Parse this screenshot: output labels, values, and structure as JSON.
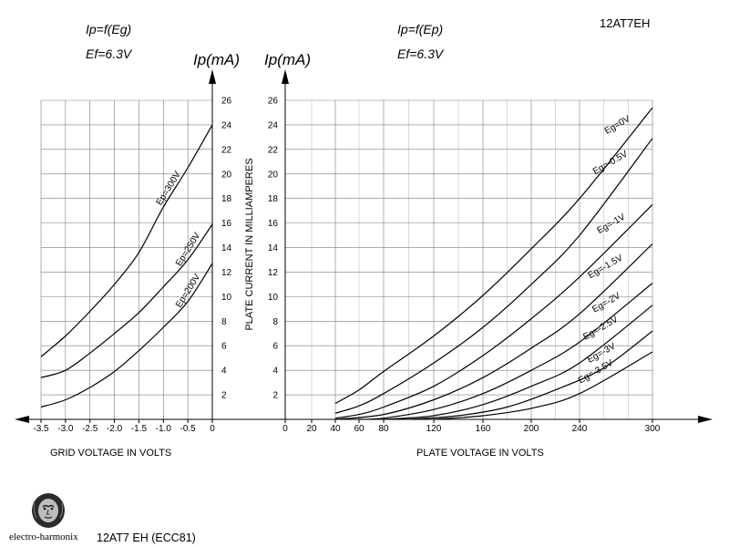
{
  "header": {
    "left_title": "Ip=f(Eg)",
    "left_sub": "Ef=6.3V",
    "right_title": "Ip=f(Ep)",
    "right_sub": "Ef=6.3V",
    "model": "12AT7EH",
    "unit_left": "Ip(mA)",
    "unit_right": "Ip(mA)"
  },
  "footer": {
    "brand": "electro-harmonix",
    "model_label": "12AT7 EH (ECC81)"
  },
  "chart_data": [
    {
      "type": "line",
      "xlabel": "GRID VOLTAGE IN VOLTS",
      "ylabel": "Ip(mA)",
      "xlim": [
        -3.5,
        0
      ],
      "ylim": [
        0,
        26
      ],
      "grid": true,
      "x_ticks": [
        -3.5,
        -3.0,
        -2.5,
        -2.0,
        -1.5,
        -1.0,
        -0.5,
        0
      ],
      "x_tick_labels": [
        "-3.5",
        "-3.0",
        "-2.5",
        "-2.0",
        "-1.5",
        "-1.0",
        "-0.5",
        "0"
      ],
      "y_ticks": [
        2,
        4,
        6,
        8,
        10,
        12,
        14,
        16,
        18,
        20,
        22,
        24,
        26
      ],
      "series": [
        {
          "name": "Ep=300V",
          "points": [
            [
              -3.5,
              5.1
            ],
            [
              -3.0,
              6.8
            ],
            [
              -2.5,
              8.8
            ],
            [
              -2.0,
              11.0
            ],
            [
              -1.5,
              13.6
            ],
            [
              -1.0,
              17.3
            ],
            [
              -0.5,
              20.5
            ],
            [
              0,
              24.0
            ]
          ]
        },
        {
          "name": "Ep=250V",
          "points": [
            [
              -3.5,
              3.4
            ],
            [
              -3.0,
              4.0
            ],
            [
              -2.5,
              5.4
            ],
            [
              -2.0,
              7.0
            ],
            [
              -1.5,
              8.7
            ],
            [
              -1.0,
              10.8
            ],
            [
              -0.5,
              13.0
            ],
            [
              0,
              15.9
            ]
          ]
        },
        {
          "name": "Ep=200V",
          "points": [
            [
              -3.5,
              1.0
            ],
            [
              -3.0,
              1.6
            ],
            [
              -2.5,
              2.6
            ],
            [
              -2.0,
              3.9
            ],
            [
              -1.5,
              5.6
            ],
            [
              -1.0,
              7.5
            ],
            [
              -0.5,
              9.6
            ],
            [
              0,
              12.7
            ]
          ]
        }
      ]
    },
    {
      "type": "line",
      "xlabel": "PLATE VOLTAGE IN VOLTS",
      "ylabel": "PLATE CURRENT IN MILLIAMPERES",
      "xlim": [
        0,
        300
      ],
      "ylim": [
        0,
        26
      ],
      "grid": true,
      "x_ticks": [
        0,
        20,
        40,
        60,
        80,
        120,
        160,
        200,
        240,
        300
      ],
      "x_tick_labels": [
        "0",
        "20",
        "40",
        "60",
        "80",
        "120",
        "160",
        "200",
        "240",
        "300"
      ],
      "y_ticks": [
        2,
        4,
        6,
        8,
        10,
        12,
        14,
        16,
        18,
        20,
        22,
        24,
        26
      ],
      "series": [
        {
          "name": "Eg=0V",
          "points": [
            [
              40,
              1.3
            ],
            [
              60,
              2.4
            ],
            [
              80,
              3.9
            ],
            [
              120,
              6.8
            ],
            [
              160,
              10.1
            ],
            [
              200,
              13.9
            ],
            [
              240,
              18.0
            ],
            [
              300,
              25.4
            ]
          ]
        },
        {
          "name": "Eg=-0.5V",
          "points": [
            [
              40,
              0.5
            ],
            [
              60,
              1.1
            ],
            [
              80,
              2.1
            ],
            [
              120,
              4.6
            ],
            [
              160,
              7.5
            ],
            [
              200,
              11.0
            ],
            [
              240,
              15.0
            ],
            [
              300,
              22.9
            ]
          ]
        },
        {
          "name": "Eg=-1V",
          "points": [
            [
              40,
              0.1
            ],
            [
              60,
              0.4
            ],
            [
              80,
              1.0
            ],
            [
              120,
              2.7
            ],
            [
              160,
              5.2
            ],
            [
              200,
              8.2
            ],
            [
              240,
              11.6
            ],
            [
              300,
              17.5
            ]
          ]
        },
        {
          "name": "Eg=-1.5V",
          "points": [
            [
              40,
              0.0
            ],
            [
              80,
              0.4
            ],
            [
              120,
              1.6
            ],
            [
              160,
              3.4
            ],
            [
              200,
              5.8
            ],
            [
              240,
              8.6
            ],
            [
              300,
              14.3
            ]
          ]
        },
        {
          "name": "Eg=-2V",
          "points": [
            [
              60,
              0.0
            ],
            [
              80,
              0.1
            ],
            [
              120,
              0.8
            ],
            [
              160,
              2.1
            ],
            [
              200,
              4.0
            ],
            [
              240,
              6.3
            ],
            [
              300,
              11.1
            ]
          ]
        },
        {
          "name": "Eg=-2.5V",
          "points": [
            [
              80,
              0.0
            ],
            [
              120,
              0.3
            ],
            [
              160,
              1.2
            ],
            [
              200,
              2.7
            ],
            [
              240,
              4.6
            ],
            [
              300,
              9.3
            ]
          ]
        },
        {
          "name": "Eg=-3V",
          "points": [
            [
              100,
              0.0
            ],
            [
              140,
              0.3
            ],
            [
              180,
              1.0
            ],
            [
              220,
              2.4
            ],
            [
              260,
              4.2
            ],
            [
              300,
              7.2
            ]
          ]
        },
        {
          "name": "Eg=-3.5V",
          "points": [
            [
              120,
              0.0
            ],
            [
              160,
              0.3
            ],
            [
              200,
              0.9
            ],
            [
              240,
              2.1
            ],
            [
              300,
              5.5
            ]
          ]
        }
      ]
    }
  ]
}
